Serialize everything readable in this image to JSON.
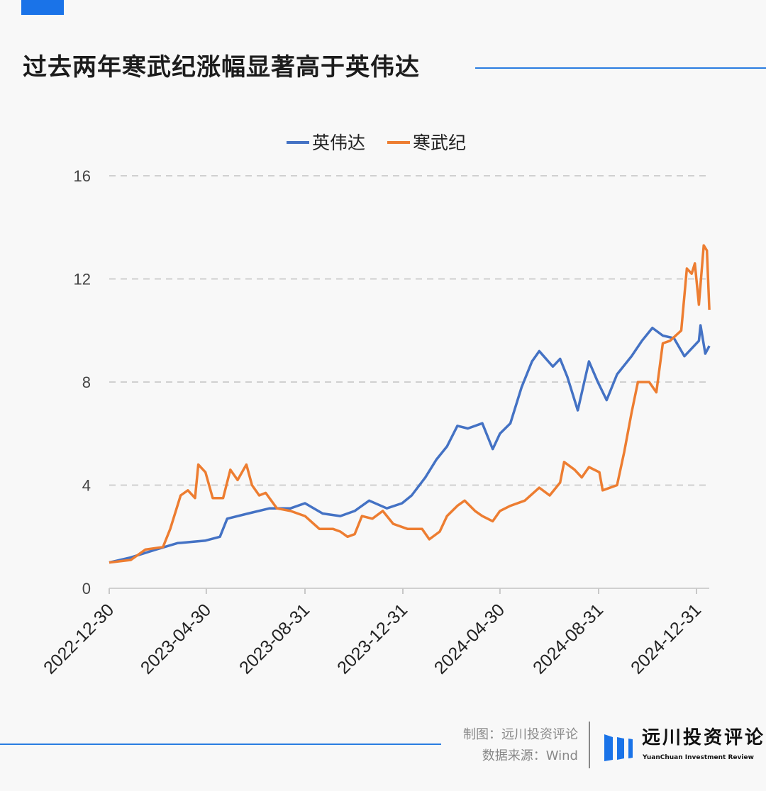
{
  "header": {
    "title": "过去两年寒武纪涨幅显著高于英伟达"
  },
  "footer": {
    "credit_line": "制图：远川投资评论",
    "source_line": "数据来源：Wind",
    "logo_cn": "远川投资评论",
    "logo_en": "YuanChuan Investment Review"
  },
  "colors": {
    "nvidia": "#4472c4",
    "cambricon": "#ed7d31",
    "accent": "#1a73e8"
  },
  "chart_data": {
    "type": "line",
    "title": "过去两年寒武纪涨幅显著高于英伟达",
    "xlabel": "",
    "ylabel": "",
    "x_unit": "days since 2022-12-30",
    "xlim": [
      0,
      748
    ],
    "ylim": [
      0,
      16
    ],
    "yticks": [
      0,
      4,
      8,
      12,
      16
    ],
    "yticklabels": [
      "0",
      "4",
      "8",
      "12",
      "16"
    ],
    "xticks": [
      0,
      121,
      244,
      366,
      487,
      610,
      732
    ],
    "xticklabels": [
      "2022-12-30",
      "2023-04-30",
      "2023-08-31",
      "2023-12-31",
      "2024-04-30",
      "2024-08-31",
      "2024-12-31"
    ],
    "grid": "horizontal-dashed",
    "legend_position": "top-center",
    "series": [
      {
        "name": "英伟达",
        "color": "#4472c4",
        "x": [
          0,
          27,
          58,
          85,
          120,
          138,
          147,
          173,
          200,
          226,
          244,
          266,
          288,
          306,
          324,
          346,
          365,
          377,
          394,
          408,
          421,
          434,
          447,
          465,
          478,
          487,
          500,
          514,
          527,
          536,
          553,
          562,
          571,
          584,
          598,
          609,
          620,
          633,
          651,
          664,
          677,
          690,
          704,
          717,
          735,
          737,
          743,
          748
        ],
        "y": [
          1.0,
          1.2,
          1.5,
          1.75,
          1.85,
          2.0,
          2.7,
          2.9,
          3.1,
          3.1,
          3.3,
          2.9,
          2.8,
          3.0,
          3.4,
          3.1,
          3.3,
          3.6,
          4.3,
          5.0,
          5.5,
          6.3,
          6.2,
          6.4,
          5.4,
          6.0,
          6.4,
          7.8,
          8.8,
          9.2,
          8.6,
          8.9,
          8.2,
          6.9,
          8.8,
          8.0,
          7.3,
          8.3,
          9.0,
          9.6,
          10.1,
          9.8,
          9.7,
          9.0,
          9.6,
          10.2,
          9.1,
          9.4
        ]
      },
      {
        "name": "寒武纪",
        "color": "#ed7d31",
        "x": [
          0,
          27,
          45,
          67,
          76,
          89,
          98,
          107,
          111,
          120,
          129,
          142,
          151,
          160,
          171,
          178,
          187,
          195,
          209,
          226,
          244,
          262,
          279,
          288,
          297,
          306,
          315,
          328,
          341,
          354,
          372,
          390,
          399,
          412,
          421,
          434,
          443,
          456,
          465,
          478,
          487,
          500,
          518,
          536,
          549,
          562,
          567,
          580,
          589,
          598,
          611,
          615,
          633,
          642,
          651,
          659,
          673,
          682,
          690,
          699,
          713,
          720,
          726,
          730,
          735,
          741,
          745,
          748
        ],
        "y": [
          1.0,
          1.1,
          1.5,
          1.6,
          2.3,
          3.6,
          3.8,
          3.5,
          4.8,
          4.5,
          3.5,
          3.5,
          4.6,
          4.2,
          4.8,
          4.0,
          3.6,
          3.7,
          3.1,
          3.0,
          2.8,
          2.3,
          2.3,
          2.2,
          2.0,
          2.1,
          2.8,
          2.7,
          3.0,
          2.5,
          2.3,
          2.3,
          1.9,
          2.2,
          2.8,
          3.2,
          3.4,
          3.0,
          2.8,
          2.6,
          3.0,
          3.2,
          3.4,
          3.9,
          3.6,
          4.1,
          4.9,
          4.6,
          4.3,
          4.7,
          4.5,
          3.8,
          4.0,
          5.3,
          6.8,
          8.0,
          8.0,
          7.6,
          9.5,
          9.6,
          10.0,
          12.4,
          12.2,
          12.6,
          11.0,
          13.3,
          13.1,
          10.8
        ]
      }
    ]
  }
}
